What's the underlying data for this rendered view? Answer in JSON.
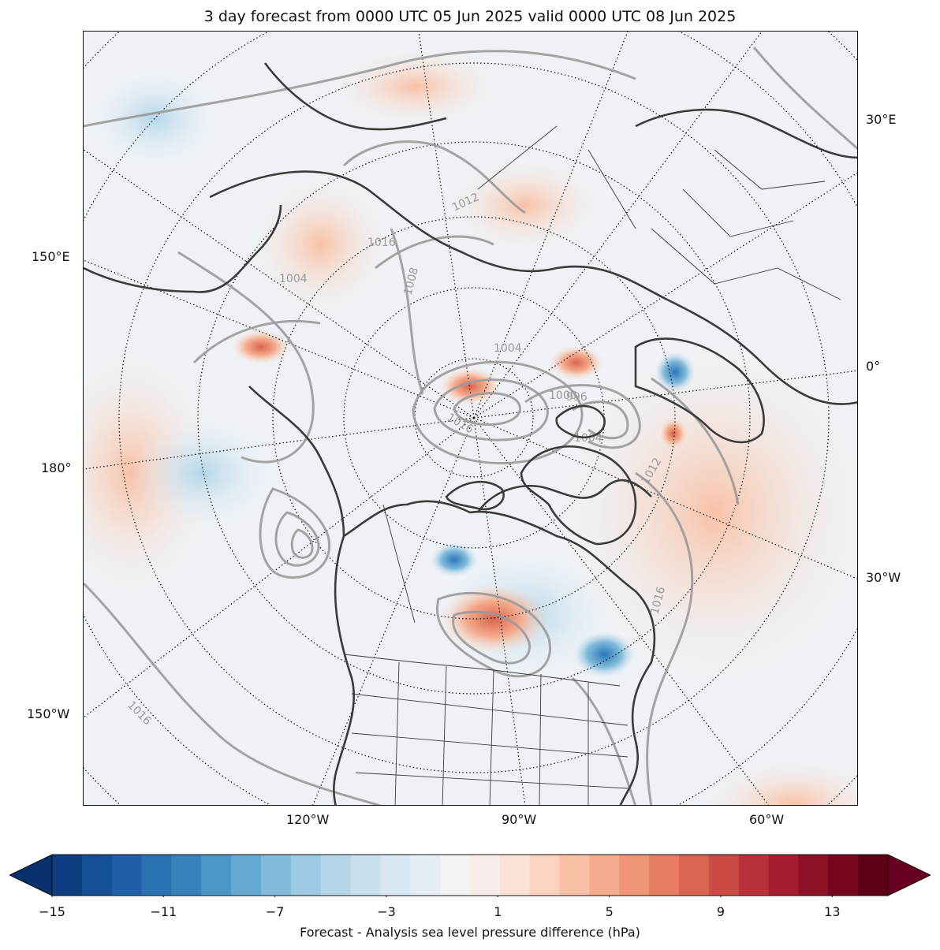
{
  "title": "3 day forecast from 0000 UTC 05 Jun 2025 valid 0000 UTC 08 Jun 2025",
  "map": {
    "projection": "north-polar-stereographic",
    "field": "sea level pressure difference",
    "background_color": "#eef2f6",
    "coastline_color": "#3a3a3a",
    "isobar_color": "#9a9a9a",
    "graticule_color": "#111111",
    "longitude_labels": {
      "e30": "30°E",
      "zero": "0°",
      "w30": "30°W",
      "e150": "150°E",
      "deg180": "180°",
      "w150": "150°W",
      "w120": "120°W",
      "w90": "90°W",
      "w60": "60°W"
    },
    "isobar_labels": [
      "1000",
      "1004",
      "1008",
      "1012",
      "1016",
      "996"
    ],
    "features": [
      {
        "name": "high-pressure-difference-anomaly",
        "color": "#e07856"
      },
      {
        "name": "low-pressure-difference-anomaly",
        "color": "#2a78b8"
      }
    ]
  },
  "colorbar": {
    "label": "Forecast - Analysis sea level pressure difference (hPa)",
    "min": -15,
    "max": 15,
    "ticks": [
      "−15",
      "−11",
      "−7",
      "−3",
      "1",
      "5",
      "9",
      "13"
    ],
    "colors": [
      "#08306b",
      "#0d3f80",
      "#154f96",
      "#1e5fa8",
      "#2a71b2",
      "#3782bb",
      "#4a97c7",
      "#65a9d0",
      "#83bcdb",
      "#9dcae2",
      "#b4d6e8",
      "#c8e1ee",
      "#d9e8f2",
      "#e6eef5",
      "#f1f3f5",
      "#f7eeea",
      "#fbe2d6",
      "#fcd3bf",
      "#f9c1a6",
      "#f5ac8c",
      "#ef9474",
      "#e67c60",
      "#d9644f",
      "#c94b43",
      "#b73238",
      "#a31e2f",
      "#8c1026",
      "#74061d",
      "#5e0015",
      "#67001f"
    ]
  }
}
